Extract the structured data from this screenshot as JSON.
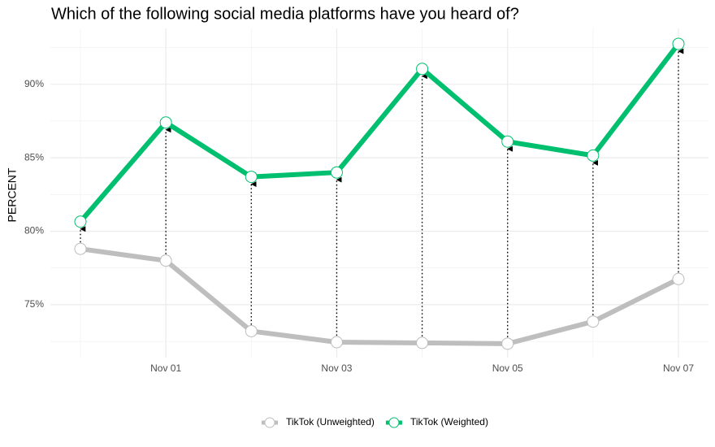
{
  "chart_data": {
    "type": "line",
    "title": "Which of the following social media platforms have you heard of?",
    "y_label": "PERCENT",
    "categories": [
      null,
      "Nov 01",
      null,
      "Nov 03",
      null,
      "Nov 05",
      null,
      "Nov 07"
    ],
    "series": [
      {
        "name": "TikTok (Unweighted)",
        "color": "#bebebe",
        "values": [
          78.8,
          78.0,
          73.2,
          72.45,
          72.4,
          72.35,
          73.85,
          76.75
        ]
      },
      {
        "name": "TikTok (Weighted)",
        "color": "#00bf6f",
        "values": [
          80.65,
          87.4,
          83.7,
          84.0,
          91.05,
          86.1,
          85.15,
          92.75
        ]
      }
    ],
    "ylim": [
      71.4,
      93.8
    ],
    "yticks": [
      {
        "value": 75,
        "label": "75%"
      },
      {
        "value": 80,
        "label": "80%"
      },
      {
        "value": 85,
        "label": "85%"
      },
      {
        "value": 90,
        "label": "90%"
      }
    ],
    "grid": true,
    "legend": "bottom"
  }
}
